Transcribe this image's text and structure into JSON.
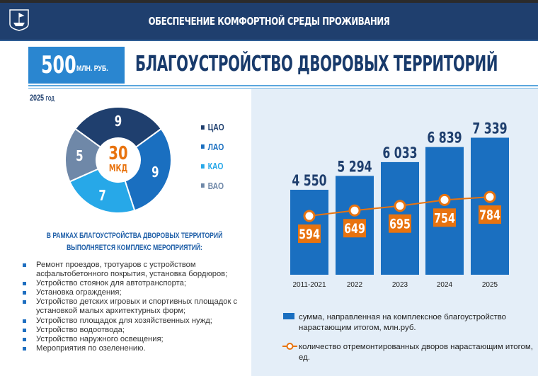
{
  "header": {
    "title": "ОБЕСПЕЧЕНИЕ КОМФОРТНОЙ СРЕДЫ ПРОЖИВАНИЯ",
    "logo": "city-coat-of-arms-ship"
  },
  "summary": {
    "amount": "500",
    "unit": "МЛН. РУБ.",
    "title": "БЛАГОУСТРОЙСТВО ДВОРОВЫХ ТЕРРИТОРИЙ"
  },
  "colors": {
    "navy": "#1f3f6e",
    "blue": "#1a6fc0",
    "light_blue": "#27a8e8",
    "gray_blue": "#6f88a8",
    "orange": "#e8730f",
    "accent": "#2a86d0"
  },
  "chart_data": [
    {
      "type": "pie",
      "year_label": "2025",
      "year_unit": "ГОД",
      "center_value": "30",
      "center_label": "МКД",
      "categories": [
        "ЦАО",
        "ЛАО",
        "КАО",
        "ВАО"
      ],
      "values": [
        9,
        9,
        7,
        5
      ],
      "colors": [
        "#1f3f6e",
        "#1a6fc0",
        "#27a8e8",
        "#6f88a8"
      ],
      "legend": "right",
      "donut": true
    },
    {
      "type": "bar",
      "categories": [
        "2011-2021",
        "2022",
        "2023",
        "2024",
        "2025"
      ],
      "series": [
        {
          "name": "сумма, направленная на комплексное благоустройство нарастающим итогом, млн.руб.",
          "type": "bar",
          "values": [
            4550,
            5294,
            6033,
            6839,
            7339
          ],
          "labels": [
            "4 550",
            "5 294",
            "6 033",
            "6 839",
            "7 339"
          ],
          "color": "#1a6fc0"
        },
        {
          "name": "количество отремонтированных дворов нарастающим итогом, ед.",
          "type": "line",
          "values": [
            594,
            649,
            695,
            754,
            784
          ],
          "labels": [
            "594",
            "649",
            "695",
            "754",
            "784"
          ],
          "color": "#e8730f"
        }
      ],
      "legend": "bottom",
      "grid": false
    }
  ],
  "activities": {
    "heading_line1": "В РАМКАХ БЛАГОУСТРОЙСТВА ДВОРОВЫХ ТЕРРИТОРИЙ",
    "heading_line2": "ВЫПОЛНЯЕТСЯ КОМПЛЕКС МЕРОПРИЯТИЙ:",
    "items": [
      "Ремонт проездов, тротуаров с устройством асфальтобетонного покрытия, установка бордюров;",
      "Устройство стоянок для автотранспорта;",
      "Установка ограждения;",
      "Устройство детских игровых и спортивных площадок с установкой малых архитектурных форм;",
      "Устройство площадок для хозяйственных нужд;",
      "Устройство водоотвода;",
      "Устройство наружного освещения;",
      "Мероприятия по озеленению."
    ]
  }
}
